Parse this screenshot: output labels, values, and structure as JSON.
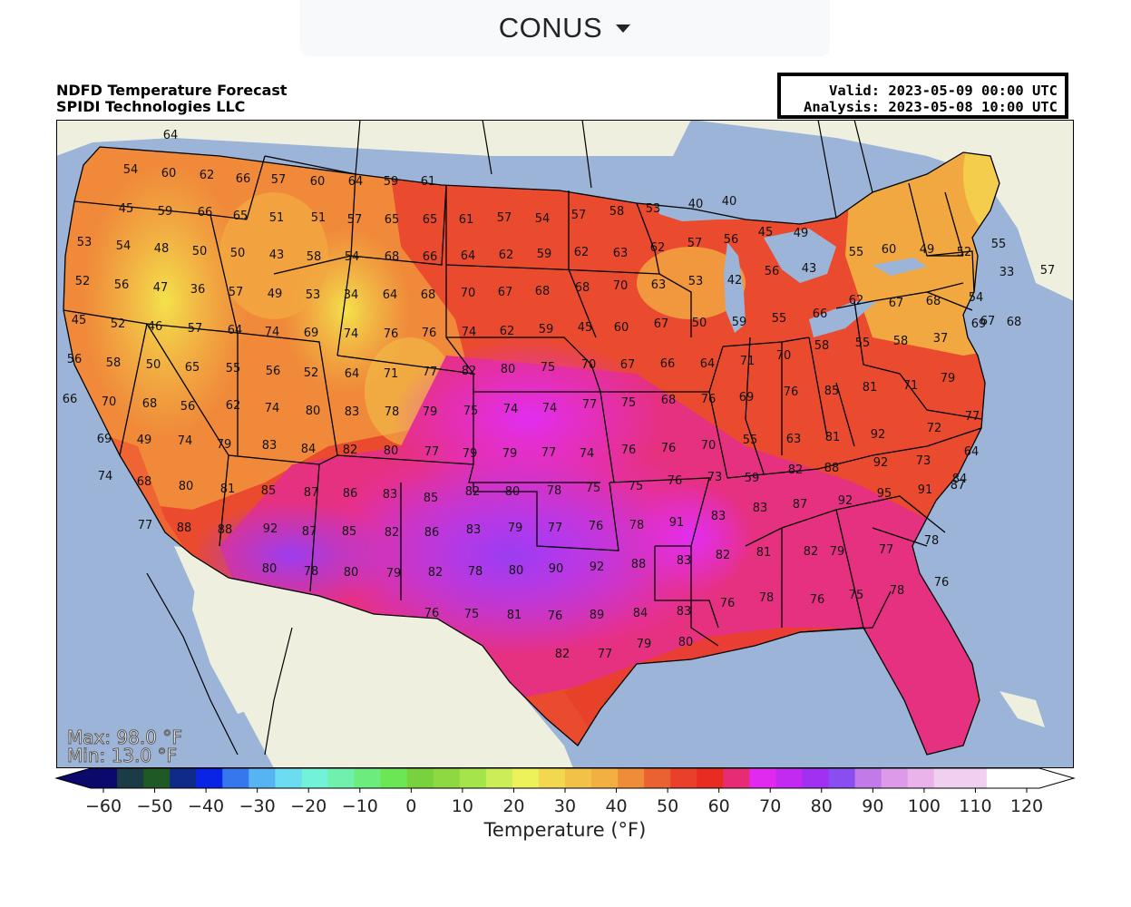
{
  "selector": {
    "label": "CONUS",
    "caret_icon": "caret-down-icon"
  },
  "header": {
    "title_line1": "NDFD Temperature Forecast",
    "title_line2": "SPIDI Technologies LLC",
    "valid": "Valid: 2023-05-09 00:00 UTC",
    "analysis": "Analysis: 2023-05-08 10:00 UTC"
  },
  "map": {
    "max_label": "Max: 98.0 °F",
    "min_label": "Min: 13.0 °F",
    "colors": {
      "ocean": "#9bb4d8",
      "land": "#efefdf",
      "lakes": "#9bb4d8",
      "borders": "#000000"
    }
  },
  "colorbar": {
    "label": "Temperature (°F)",
    "ticks": [
      "−60",
      "−50",
      "−40",
      "−30",
      "−20",
      "−10",
      "0",
      "10",
      "20",
      "30",
      "40",
      "50",
      "60",
      "70",
      "80",
      "90",
      "100",
      "110",
      "120"
    ],
    "colors": [
      "#0b0a6c",
      "#1b3b46",
      "#1f5a26",
      "#102a8a",
      "#0a24e6",
      "#3777ee",
      "#56b4f2",
      "#6cdcf2",
      "#72f2d8",
      "#6ff0ad",
      "#6cec7c",
      "#6be654",
      "#77d23e",
      "#8ed842",
      "#a6e44c",
      "#cbee58",
      "#eef25a",
      "#f2d84e",
      "#f2c248",
      "#f2b042",
      "#ee8c3a",
      "#ea6232",
      "#e8402a",
      "#e82c22",
      "#e62c72",
      "#e02af0",
      "#c22af2",
      "#a030f2",
      "#8a4ef0",
      "#c27ae8",
      "#dc9ae8",
      "#eab4ea",
      "#f0d0f0"
    ],
    "temp_values": [
      64,
      54,
      60,
      62,
      66,
      57,
      60,
      64,
      59,
      61,
      45,
      59,
      66,
      65,
      51,
      51,
      57,
      65,
      65,
      61,
      57,
      54,
      57,
      58,
      53,
      40,
      40,
      53,
      54,
      48,
      50,
      50,
      43,
      58,
      54,
      68,
      66,
      64,
      62,
      59,
      62,
      63,
      62,
      57,
      56,
      45,
      49,
      52,
      56,
      47,
      36,
      57,
      49,
      53,
      34,
      64,
      68,
      70,
      67,
      68,
      68,
      70,
      63,
      53,
      42,
      56,
      43,
      55,
      60,
      49,
      52,
      55,
      33,
      57,
      45,
      52,
      46,
      57,
      64,
      74,
      69,
      74,
      76,
      76,
      74,
      62,
      59,
      45,
      60,
      67,
      50,
      59,
      55,
      66,
      62,
      67,
      68,
      54,
      67,
      56,
      58,
      50,
      65,
      55,
      56,
      52,
      64,
      71,
      77,
      82,
      80,
      75,
      70,
      67,
      66,
      64,
      71,
      70,
      58,
      55,
      58,
      37,
      69,
      68,
      66,
      70,
      68,
      56,
      62,
      74,
      80,
      83,
      78,
      79,
      75,
      74,
      74,
      77,
      75,
      68,
      76,
      69,
      76,
      85,
      81,
      71,
      79,
      69,
      49,
      74,
      79,
      83,
      84,
      82,
      80,
      77,
      79,
      79,
      77,
      74,
      76,
      76,
      70,
      55,
      63,
      81,
      92,
      72,
      77,
      74,
      68,
      80,
      81,
      85,
      87,
      86,
      83,
      85,
      82,
      80,
      78,
      75,
      75,
      76,
      73,
      59,
      82,
      88,
      92,
      73,
      64,
      77,
      88,
      88,
      92,
      87,
      85,
      82,
      86,
      83,
      79,
      77,
      76,
      78,
      91,
      83,
      83,
      87,
      92,
      95,
      91,
      87,
      84,
      80,
      78,
      80,
      79,
      82,
      78,
      80,
      90,
      92,
      88,
      83,
      82,
      81,
      82,
      79,
      77,
      78,
      76,
      75,
      81,
      76,
      89,
      84,
      83,
      76,
      78,
      76,
      75,
      78,
      76,
      82,
      77,
      79,
      80
    ]
  }
}
